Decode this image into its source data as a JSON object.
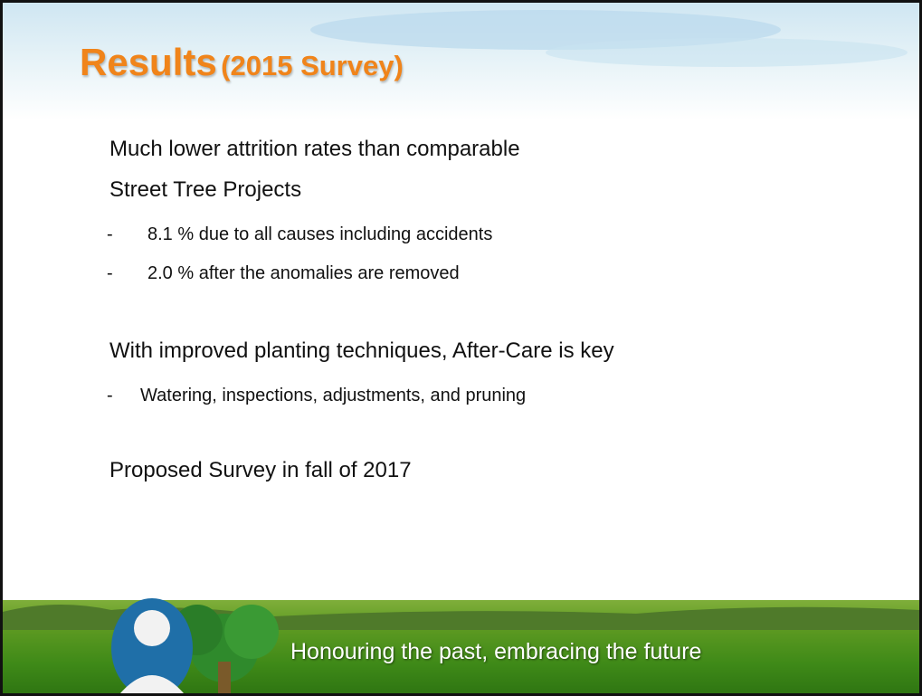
{
  "slide": {
    "title": {
      "main": "Results",
      "sub": "(2015 Survey)"
    },
    "body": [
      {
        "text": "Much lower attrition rates than comparable"
      },
      {
        "text": "Street Tree Projects"
      },
      {
        "bullets": [
          {
            "marker": "-",
            "text": "8.1 % due to all causes including accidents"
          },
          {
            "marker": "-",
            "text": "2.0 % after the anomalies are removed"
          }
        ]
      },
      {
        "text": "With improved planting techniques, After-Care is key"
      },
      {
        "bullets": [
          {
            "marker": "-",
            "text": "Watering, inspections, adjustments, and pruning"
          }
        ]
      },
      {
        "text": "Proposed Survey in fall of 2017"
      }
    ],
    "footer": "Honouring the past, embracing the future"
  }
}
